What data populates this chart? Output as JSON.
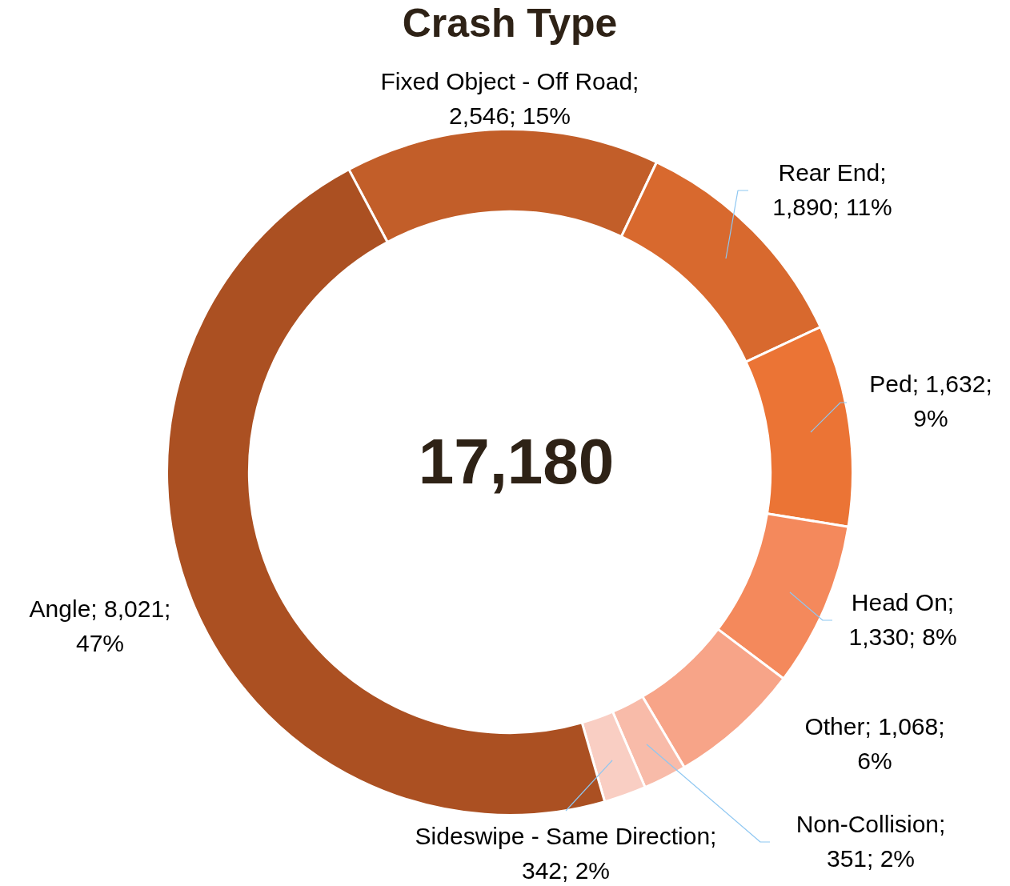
{
  "chart_data": {
    "type": "donut",
    "title": "Crash Type",
    "categories": [
      "Fixed Object - Off Road",
      "Rear End",
      "Ped",
      "Head On",
      "Other",
      "Non-Collision",
      "Sideswipe - Same Direction",
      "Angle"
    ],
    "values": [
      2546,
      1890,
      1632,
      1330,
      1068,
      351,
      342,
      8021
    ],
    "value_labels": [
      "; 2,546; 15%",
      "; 1,890; 11%",
      "; 1,632; 9%",
      "; 1,330; 8%",
      "; 1,068; 6%",
      "; 351; 2%",
      "; 342; 2%",
      "; 8,021; 47%"
    ],
    "colors": [
      "#c25e29",
      "#d8692e",
      "#eb7435",
      "#f4895c",
      "#f7a488",
      "#f8bba9",
      "#f9cec3",
      "#ab5022"
    ],
    "annotations": [
      "17,180"
    ],
    "legend": false
  }
}
